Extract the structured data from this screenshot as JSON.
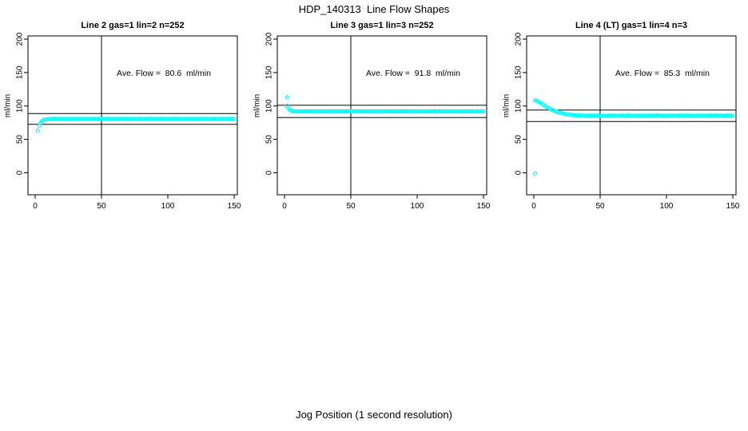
{
  "page": {
    "title": "HDP_140313  Line Flow Shapes",
    "shared_xlabel": "Jog Position (1 second resolution)"
  },
  "colors": {
    "marker": "#00FFFF",
    "axis": "#000000",
    "background": "#FFFFFF"
  },
  "chart_data": [
    {
      "type": "scatter",
      "title": "Line 2 gas=1 lin=2 n=252",
      "ylabel": "ml/min",
      "annotation": "Ave. Flow =  80.6  ml/min",
      "ave_flow_ml_min": 80.6,
      "n": 252,
      "x_ticks": [
        0,
        50,
        100,
        150
      ],
      "y_ticks": [
        0,
        50,
        100,
        150,
        200
      ],
      "x_range": [
        0,
        150
      ],
      "y_range": [
        0,
        200
      ],
      "grid": false,
      "legend": false,
      "vline_x": 50,
      "ref_lines_y": [
        88.7,
        72.5
      ],
      "marker": "open-circle",
      "x_start": 2,
      "x_step": 1,
      "y": [
        63,
        70.5,
        74.5,
        77,
        78.5,
        79.3,
        79.8,
        80,
        80.2,
        80.4,
        80.7,
        80.3,
        80.6,
        80.9,
        80.5,
        80.2,
        80.6,
        80.8,
        80.4,
        80.6,
        80.3,
        80.7,
        80.5,
        80.9,
        80.6,
        80.3,
        80.8,
        80.5,
        80.7,
        80.4,
        80.7,
        80.3,
        80.6,
        80.9,
        80.5,
        80.2,
        80.6,
        80.8,
        80.4,
        80.6,
        80.3,
        80.7,
        80.5,
        80.9,
        80.6,
        80.3,
        80.8,
        80.5,
        80.7,
        80.4,
        80.7,
        80.3,
        80.6,
        80.9,
        80.5,
        80.2,
        80.6,
        80.8,
        80.4,
        80.6,
        80.3,
        80.7,
        80.5,
        80.9,
        80.6,
        80.3,
        80.8,
        80.5,
        80.7,
        80.4,
        80.7,
        80.3,
        80.6,
        80.9,
        80.5,
        80.2,
        80.6,
        80.8,
        80.4,
        80.6,
        80.3,
        80.7,
        80.5,
        80.9,
        80.6,
        80.3,
        80.8,
        80.5,
        80.7,
        80.4,
        80.7,
        80.3,
        80.6,
        80.9,
        80.5,
        80.2,
        80.6,
        80.8,
        80.4,
        80.6,
        80.3,
        80.7,
        80.5,
        80.9,
        80.6,
        80.3,
        80.8,
        80.5,
        80.7,
        80.4,
        80.7,
        80.3,
        80.6,
        80.9,
        80.5,
        80.2,
        80.6,
        80.8,
        80.4,
        80.6,
        80.3,
        80.7,
        80.5,
        80.9,
        80.6,
        80.3,
        80.8,
        80.5,
        80.7,
        80.4,
        80.7,
        80.3,
        80.6,
        80.9,
        80.5,
        80.2,
        80.6,
        80.8,
        80.4,
        80.6,
        80.3,
        80.7,
        80.5,
        80.9,
        80.6,
        80.3,
        80.8,
        80.5,
        80.7
      ],
      "outliers": []
    },
    {
      "type": "scatter",
      "title": "Line 3 gas=1 lin=3 n=252",
      "ylabel": "ml/min",
      "annotation": "Ave. Flow =  91.8  ml/min",
      "ave_flow_ml_min": 91.8,
      "n": 252,
      "x_ticks": [
        0,
        50,
        100,
        150
      ],
      "y_ticks": [
        0,
        50,
        100,
        150,
        200
      ],
      "x_range": [
        0,
        150
      ],
      "y_range": [
        0,
        200
      ],
      "grid": false,
      "legend": false,
      "vline_x": 50,
      "ref_lines_y": [
        101,
        82.6
      ],
      "marker": "open-circle",
      "x_start": 2,
      "x_step": 1,
      "y": [
        100.2,
        96.5,
        94.2,
        93,
        92.4,
        92,
        91.9,
        91.6,
        92,
        91.7,
        92.1,
        91.8,
        91.5,
        91.9,
        92.2,
        91.7,
        91.9,
        91.6,
        92,
        91.8,
        91.5,
        92.1,
        91.8,
        91.6,
        92,
        91.7,
        91.9,
        91.6,
        92,
        91.7,
        92.1,
        91.8,
        91.5,
        91.9,
        92.2,
        91.7,
        91.9,
        91.6,
        92,
        91.8,
        91.5,
        92.1,
        91.8,
        91.6,
        92,
        91.7,
        91.9,
        91.6,
        92,
        91.7,
        92.1,
        91.8,
        91.5,
        91.9,
        92.2,
        91.7,
        91.9,
        91.6,
        92,
        91.8,
        91.5,
        92.1,
        91.8,
        91.6,
        92,
        91.7,
        91.9,
        91.6,
        92,
        91.7,
        92.1,
        91.8,
        91.5,
        91.9,
        92.2,
        91.7,
        91.9,
        91.6,
        92,
        91.8,
        91.5,
        92.1,
        91.8,
        91.6,
        92,
        91.7,
        91.9,
        91.6,
        92,
        91.7,
        92.1,
        91.8,
        91.5,
        91.9,
        92.2,
        91.7,
        91.9,
        91.6,
        92,
        91.8,
        91.5,
        92.1,
        91.8,
        91.6,
        92,
        91.7,
        91.9,
        91.6,
        92,
        91.7,
        92.1,
        91.8,
        91.5,
        91.9,
        92.2,
        91.7,
        91.9,
        91.6,
        92,
        91.8,
        91.5,
        92.1,
        91.8,
        91.6,
        92,
        91.7,
        91.9,
        91.6,
        92,
        91.7,
        92.1,
        91.8,
        91.5,
        91.9,
        92.2,
        91.7,
        91.9,
        91.6,
        92,
        91.8,
        91.5,
        92.1,
        91.8,
        91.6,
        92,
        91.7,
        91.9,
        91.6,
        92
      ],
      "outliers": [
        [
          2,
          113
        ]
      ]
    },
    {
      "type": "scatter",
      "title": "Line 4 (LT) gas=1 lin=4 n=3",
      "ylabel": "ml/min",
      "annotation": "Ave. Flow =  85.3  ml/min",
      "ave_flow_ml_min": 85.3,
      "n": 3,
      "x_ticks": [
        0,
        50,
        100,
        150
      ],
      "y_ticks": [
        0,
        50,
        100,
        150,
        200
      ],
      "x_range": [
        0,
        150
      ],
      "y_range": [
        0,
        200
      ],
      "grid": false,
      "legend": false,
      "vline_x": 50,
      "ref_lines_y": [
        93.8,
        76.8
      ],
      "marker": "open-circle",
      "x_start": 1,
      "x_step": 1,
      "y": [
        108.3,
        107.8,
        106.9,
        105.9,
        104.7,
        103.4,
        102.1,
        100.8,
        99.5,
        98.3,
        97.1,
        96,
        95,
        94.1,
        93.2,
        92.4,
        91.7,
        91,
        90.4,
        89.8,
        89.3,
        88.8,
        88.4,
        88,
        87.6,
        87.3,
        87,
        86.7,
        86.5,
        86.3,
        86.1,
        85.9,
        85.8,
        85.6,
        85.5,
        85.8,
        85.4,
        85.6,
        85.3,
        85.5,
        85.4,
        85.1,
        85.6,
        85.2,
        85.7,
        85.3,
        85,
        85.5,
        85.8,
        85.2,
        85.4,
        85.1,
        85.6,
        85.3,
        84.9,
        85.5,
        85.2,
        85.7,
        85.3,
        85.1,
        85.6,
        85.4,
        85.4,
        85.1,
        85.6,
        85.2,
        85.7,
        85.3,
        85,
        85.5,
        85.8,
        85.2,
        85.4,
        85.1,
        85.6,
        85.3,
        84.9,
        85.5,
        85.2,
        85.7,
        85.3,
        85.1,
        85.6,
        85.4,
        85.4,
        85.1,
        85.6,
        85.2,
        85.7,
        85.3,
        85,
        85.5,
        85.8,
        85.2,
        85.4,
        85.1,
        85.6,
        85.3,
        84.9,
        85.5,
        85.2,
        85.7,
        85.3,
        85.1,
        85.6,
        85.4,
        85.4,
        85.1,
        85.6,
        85.2,
        85.7,
        85.3,
        85,
        85.5,
        85.8,
        85.2,
        85.4,
        85.1,
        85.6,
        85.3,
        84.9,
        85.5,
        85.2,
        85.7,
        85.3,
        85.1,
        85.6,
        85.4,
        85.4,
        85.1,
        85.6,
        85.2,
        85.7,
        85.3,
        85,
        85.5,
        85.8,
        85.2,
        85.4,
        85.1,
        85.6,
        85.3,
        84.9,
        85.5,
        85.2,
        85.7,
        85.3,
        85.1,
        85.6,
        85.4
      ],
      "outliers": [
        [
          1,
          -1
        ]
      ]
    }
  ]
}
